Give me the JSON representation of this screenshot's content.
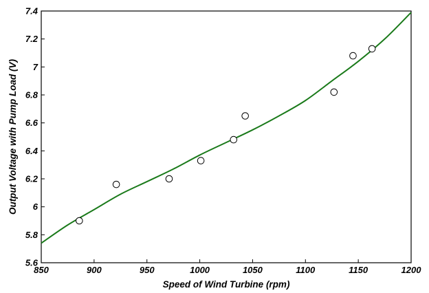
{
  "chart_data": {
    "type": "scatter",
    "title": "",
    "xlabel": "Speed of Wind Turbine (rpm)",
    "ylabel": "Output Voltage with Pump Load (V)",
    "xlim": [
      850,
      1200
    ],
    "ylim": [
      5.6,
      7.4
    ],
    "x_ticks": [
      850,
      900,
      950,
      1000,
      1050,
      1100,
      1150,
      1200
    ],
    "x_tick_labels": [
      "850",
      "900",
      "950",
      "1000",
      "1050",
      "1100",
      "1150",
      "1200"
    ],
    "y_ticks": [
      5.6,
      5.8,
      6.0,
      6.2,
      6.4,
      6.6,
      6.8,
      7.0,
      7.2,
      7.4
    ],
    "y_tick_labels": [
      "5.6",
      "5.8",
      "6",
      "6.2",
      "6.4",
      "6.6",
      "6.8",
      "7",
      "7.2",
      "7.4"
    ],
    "grid": false,
    "series": [
      {
        "kind": "scatter",
        "marker": "open-circle",
        "color": "#000000",
        "x": [
          886,
          921,
          971,
          1001,
          1032,
          1043,
          1127,
          1145,
          1163
        ],
        "y": [
          5.9,
          6.16,
          6.2,
          6.33,
          6.48,
          6.65,
          6.82,
          7.08,
          7.13
        ]
      },
      {
        "kind": "line",
        "color": "#1a7a1a",
        "x": [
          850,
          875,
          900,
          925,
          950,
          975,
          1000,
          1025,
          1050,
          1075,
          1100,
          1125,
          1150,
          1175,
          1200
        ],
        "y": [
          5.74,
          5.87,
          5.98,
          6.09,
          6.18,
          6.27,
          6.37,
          6.46,
          6.55,
          6.65,
          6.76,
          6.9,
          7.04,
          7.2,
          7.39
        ]
      }
    ]
  }
}
